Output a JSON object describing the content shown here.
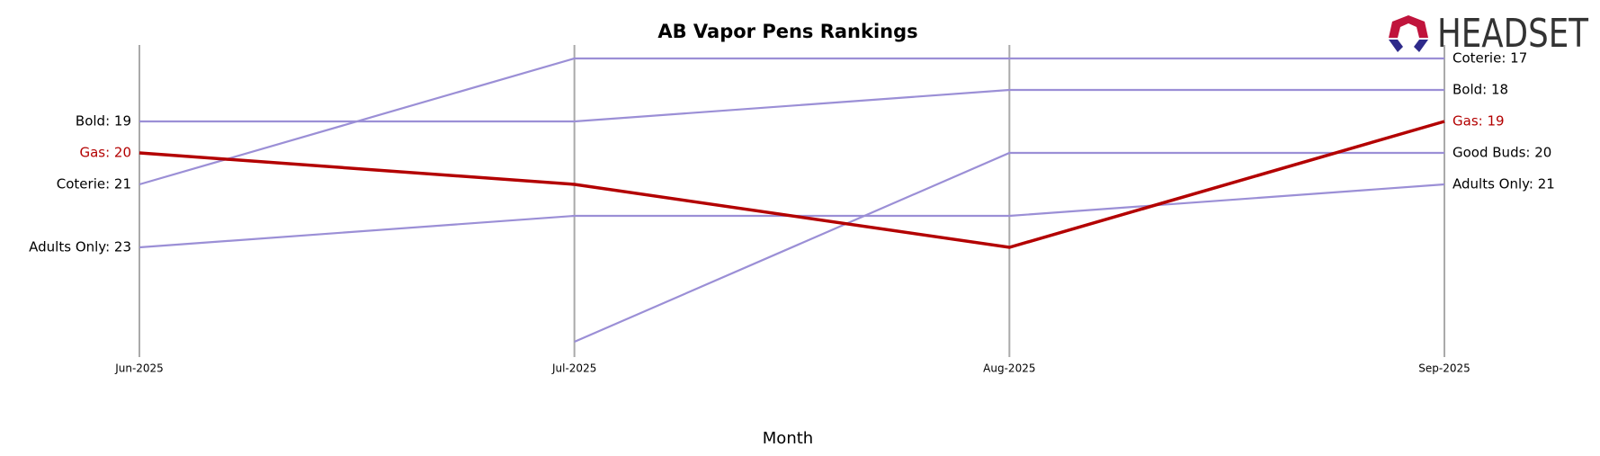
{
  "logo": "HEADSET",
  "chart_data": {
    "type": "bump",
    "title": "AB Vapor Pens Rankings",
    "x_label": "Month",
    "categories": [
      "Jun-2025",
      "Jul-2025",
      "Aug-2025",
      "Sep-2025"
    ],
    "ylim": [
      26.5,
      16.5
    ],
    "grid": true,
    "series": [
      {
        "name": "Coterie",
        "color": "#9b8fd6",
        "values": [
          21,
          17,
          17,
          17
        ],
        "value_labels": [
          "Coterie: 21",
          null,
          null,
          "Coterie: 17"
        ]
      },
      {
        "name": "Bold",
        "color": "#9b8fd6",
        "values": [
          19,
          19,
          18,
          18
        ],
        "value_labels": [
          "Bold: 19",
          null,
          null,
          "Bold: 18"
        ]
      },
      {
        "name": "Good Buds",
        "color": "#9b8fd6",
        "values": [
          null,
          26,
          20,
          20
        ],
        "value_labels": [
          null,
          null,
          null,
          "Good Buds: 20"
        ]
      },
      {
        "name": "Adults Only",
        "color": "#9b8fd6",
        "values": [
          23,
          22,
          22,
          21
        ],
        "value_labels": [
          "Adults Only: 23",
          null,
          null,
          "Adults Only: 21"
        ]
      },
      {
        "name": "Gas",
        "color": "#b30000",
        "values": [
          20,
          21,
          23,
          19
        ],
        "value_labels": [
          "Gas: 20",
          null,
          null,
          "Gas: 19"
        ]
      }
    ]
  }
}
